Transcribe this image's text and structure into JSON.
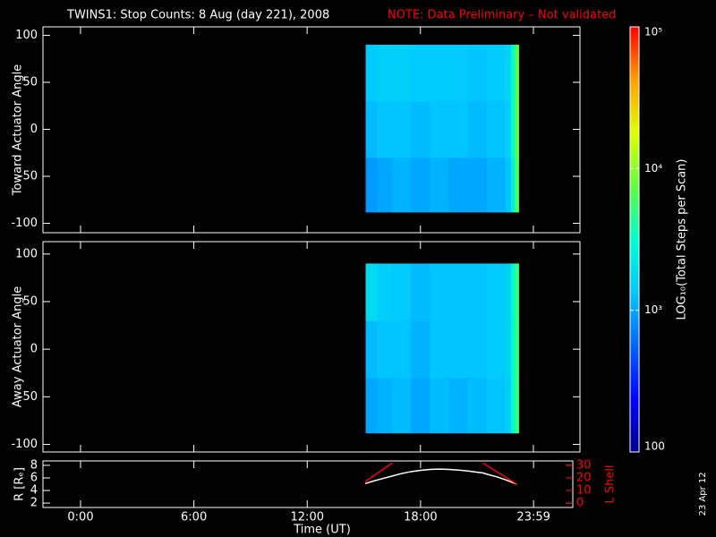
{
  "title": "TWINS1: Stop Counts:  8 Aug (day 221), 2008",
  "note": "NOTE: Data Preliminary – Not validated",
  "date_stamp": "23 Apr 12",
  "colorbar": {
    "label": "LOG₁₀(Total Steps per Scan)",
    "log": true,
    "lim": [
      100,
      100000
    ],
    "ticks": [
      100,
      {
        "value": 1000,
        "label": "10³"
      },
      {
        "value": 10000,
        "label": "10⁴"
      },
      {
        "value": 100000,
        "label": "10⁵"
      }
    ],
    "colors": [
      "#00008c",
      "#0000ff",
      "#0064ff",
      "#00c8ff",
      "#00ffd0",
      "#60ff40",
      "#e0ff00",
      "#ffa000",
      "#ff0000"
    ]
  },
  "chart_data": [
    {
      "type": "heatmap",
      "ylabel": "Toward Actuator Angle",
      "xlim": [
        -1.99,
        26.45
      ],
      "ylim": [
        -110,
        109
      ],
      "yticks": [
        -100,
        -50,
        0,
        50,
        100
      ],
      "x_edges": [
        15.1,
        15.7,
        16.5,
        17.5,
        18.5,
        19.5,
        20.5,
        21.5,
        22.5,
        22.8,
        23.0,
        23.2
      ],
      "y_edges": [
        -88,
        -30,
        30,
        90
      ],
      "values": [
        [
          900,
          1000,
          1100,
          1000,
          1100,
          1000,
          1000,
          1100,
          1300,
          2500,
          6000
        ],
        [
          1200,
          1300,
          1300,
          1200,
          1300,
          1300,
          1200,
          1300,
          1500,
          3000,
          7000
        ],
        [
          1400,
          1500,
          1500,
          1400,
          1400,
          1400,
          1300,
          1400,
          1600,
          3000,
          7000
        ]
      ]
    },
    {
      "type": "heatmap",
      "ylabel": "Away Actuator Angle",
      "xlim": [
        -1.99,
        26.45
      ],
      "ylim": [
        -108,
        113
      ],
      "yticks": [
        -100,
        -50,
        0,
        50,
        100
      ],
      "x_edges": [
        15.1,
        15.7,
        16.5,
        17.5,
        18.5,
        19.5,
        20.5,
        21.5,
        22.5,
        22.8,
        23.0,
        23.2
      ],
      "y_edges": [
        -88,
        -30,
        30,
        90
      ],
      "values": [
        [
          1000,
          1100,
          1200,
          1000,
          1200,
          1100,
          1200,
          1300,
          1500,
          3000,
          5000
        ],
        [
          1200,
          1300,
          1300,
          1100,
          1300,
          1300,
          1300,
          1400,
          1600,
          3000,
          5000
        ],
        [
          1800,
          1500,
          1400,
          1200,
          1300,
          1300,
          1300,
          1400,
          1600,
          3000,
          5000
        ]
      ]
    },
    {
      "type": "line",
      "ylabel": "R [Rₑ]",
      "y2label": "L Shell",
      "xlabel": "Time (UT)",
      "xlim": [
        -1.99,
        26.06
      ],
      "ylim": [
        1.3,
        8.7
      ],
      "yticks": [
        2,
        4,
        6,
        8
      ],
      "y2lim": [
        -3.6,
        33.6
      ],
      "y2ticks": [
        0,
        10,
        20,
        30
      ],
      "y2color": "#ff0000",
      "xticks": [
        {
          "value": 0,
          "label": "0:00"
        },
        {
          "value": 6,
          "label": "6:00"
        },
        {
          "value": 12,
          "label": "12:00"
        },
        {
          "value": 18,
          "label": "18:00"
        },
        {
          "value": 23.983,
          "label": "23:59"
        }
      ],
      "x": [
        15.07,
        15.5,
        16,
        16.5,
        17,
        17.5,
        18,
        18.5,
        19,
        19.5,
        20,
        20.5,
        21,
        21.3,
        21.5,
        22,
        22.5,
        23.1
      ],
      "series": [
        {
          "color": "#ffffff",
          "values": [
            5.1,
            5.5,
            5.9,
            6.3,
            6.7,
            7.0,
            7.2,
            7.35,
            7.4,
            7.35,
            7.25,
            7.1,
            6.9,
            6.8,
            6.6,
            6.2,
            5.7,
            5.0
          ]
        },
        {
          "color": "#ff0000",
          "axis": "y2",
          "values": [
            17,
            21.5,
            26.7,
            32,
            null,
            null,
            null,
            null,
            null,
            null,
            null,
            null,
            null,
            32,
            30,
            25.4,
            20.7,
            15
          ]
        }
      ]
    }
  ]
}
